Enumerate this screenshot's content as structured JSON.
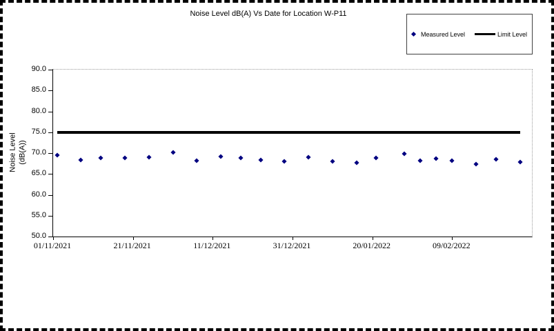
{
  "chart": {
    "title": "Noise Level dB(A) Vs Date for Location W-P11",
    "y_axis_title_line1": "Noise Level",
    "y_axis_title_line2": "(dB(A))",
    "legend": {
      "measured_label": "Measured Level",
      "limit_label": "Limit Level"
    },
    "colors": {
      "measured_marker": "#000080",
      "limit_line": "#000000",
      "plot_border_dotted": "#999999",
      "axis": "#000000"
    }
  },
  "chart_data": {
    "type": "scatter",
    "title": "Noise Level dB(A) Vs Date for Location W-P11",
    "ylabel": "Noise Level (dB(A))",
    "ylim": [
      50,
      90
    ],
    "y_tick_step": 5,
    "y_tick_labels": [
      "90.0",
      "85.0",
      "80.0",
      "75.0",
      "70.0",
      "65.0",
      "60.0",
      "55.0",
      "50.0"
    ],
    "x_unit": "days since first x tick (01/11/2021), estimated from tick spacing",
    "x_axis_day_range": [
      0,
      120
    ],
    "x_ticks": [
      {
        "day": 0,
        "label": "01/11/2021"
      },
      {
        "day": 20,
        "label": "21/11/2021"
      },
      {
        "day": 40,
        "label": "11/12/2021"
      },
      {
        "day": 60,
        "label": "31/12/2021"
      },
      {
        "day": 80,
        "label": "20/01/2022"
      },
      {
        "day": 100,
        "label": "09/02/2022"
      }
    ],
    "grid": false,
    "legend_position": "top-right",
    "series": [
      {
        "name": "Measured Level",
        "type": "scatter",
        "marker": "diamond",
        "color": "#000080",
        "points": [
          {
            "day": 1,
            "value": 69.5
          },
          {
            "day": 7,
            "value": 68.3
          },
          {
            "day": 12,
            "value": 68.8
          },
          {
            "day": 18,
            "value": 68.9
          },
          {
            "day": 24,
            "value": 69.0
          },
          {
            "day": 30,
            "value": 70.1
          },
          {
            "day": 36,
            "value": 68.2
          },
          {
            "day": 42,
            "value": 69.2
          },
          {
            "day": 47,
            "value": 68.8
          },
          {
            "day": 52,
            "value": 68.4
          },
          {
            "day": 58,
            "value": 68.0
          },
          {
            "day": 64,
            "value": 69.0
          },
          {
            "day": 70,
            "value": 68.0
          },
          {
            "day": 76,
            "value": 67.7
          },
          {
            "day": 81,
            "value": 68.9
          },
          {
            "day": 88,
            "value": 69.9
          },
          {
            "day": 92,
            "value": 68.2
          },
          {
            "day": 96,
            "value": 68.7
          },
          {
            "day": 100,
            "value": 68.2
          },
          {
            "day": 106,
            "value": 67.4
          },
          {
            "day": 111,
            "value": 68.5
          },
          {
            "day": 117,
            "value": 67.9
          }
        ]
      },
      {
        "name": "Limit Level",
        "type": "line",
        "color": "#000000",
        "value": 75.0,
        "day_start": 1,
        "day_end": 117
      }
    ]
  }
}
